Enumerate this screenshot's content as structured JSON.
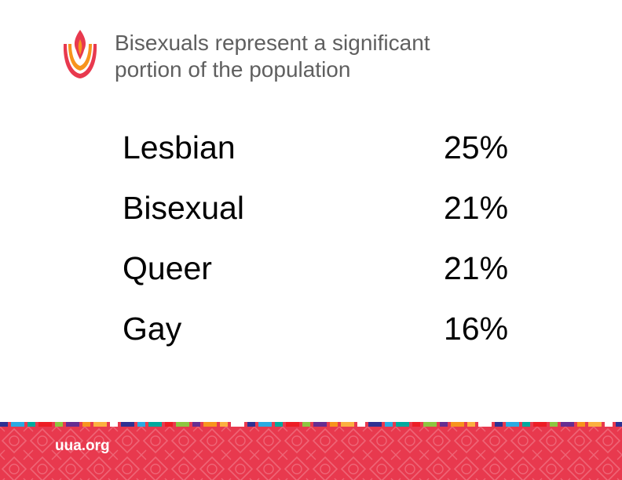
{
  "header": {
    "title_line1": "Bisexuals represent a significant",
    "title_line2": "portion of the population",
    "logo_icon": "uua-chalice-icon"
  },
  "stats": [
    {
      "label": "Lesbian",
      "value": "25%"
    },
    {
      "label": "Bisexual",
      "value": "21%"
    },
    {
      "label": "Queer",
      "value": "21%"
    },
    {
      "label": "Gay",
      "value": "16%"
    }
  ],
  "footer": {
    "site": "uua.org"
  },
  "colors": {
    "flame_red": "#e8394e",
    "flame_orange": "#f7941d",
    "title_gray": "#5f5f5f",
    "footer_bg": "#e8394e"
  }
}
